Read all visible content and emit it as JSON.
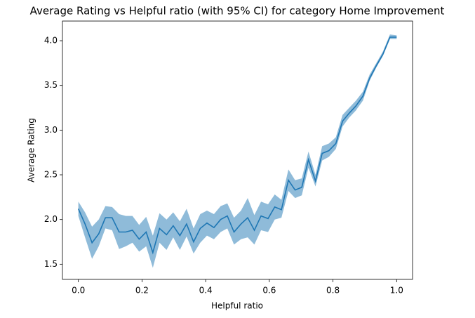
{
  "chart_data": {
    "type": "line",
    "title": "Average Rating vs Helpful ratio (with 95% CI) for category Home Improvement",
    "x_label": "Helpful ratio",
    "y_label": "Average Rating",
    "x": [
      0,
      0.021,
      0.043,
      0.064,
      0.085,
      0.106,
      0.128,
      0.149,
      0.17,
      0.191,
      0.213,
      0.234,
      0.255,
      0.277,
      0.298,
      0.319,
      0.34,
      0.362,
      0.383,
      0.404,
      0.426,
      0.447,
      0.468,
      0.489,
      0.511,
      0.532,
      0.553,
      0.574,
      0.596,
      0.617,
      0.638,
      0.66,
      0.681,
      0.702,
      0.723,
      0.745,
      0.766,
      0.787,
      0.809,
      0.83,
      0.851,
      0.872,
      0.894,
      0.915,
      0.936,
      0.957,
      0.979,
      1.0
    ],
    "series": [
      {
        "color": "#1f77b4",
        "band_color": "#8fbbd9",
        "values": [
          2.12,
          1.95,
          1.74,
          1.84,
          2.02,
          2.02,
          1.86,
          1.86,
          1.88,
          1.78,
          1.86,
          1.63,
          1.9,
          1.83,
          1.93,
          1.82,
          1.95,
          1.75,
          1.9,
          1.96,
          1.91,
          2.0,
          2.04,
          1.86,
          1.95,
          2.02,
          1.88,
          2.04,
          2.01,
          2.14,
          2.11,
          2.44,
          2.33,
          2.36,
          2.67,
          2.43,
          2.74,
          2.77,
          2.85,
          3.1,
          3.19,
          3.27,
          3.38,
          3.58,
          3.72,
          3.85,
          4.04,
          4.04
        ],
        "lower": [
          2.04,
          1.8,
          1.56,
          1.7,
          1.9,
          1.88,
          1.67,
          1.7,
          1.74,
          1.64,
          1.7,
          1.46,
          1.74,
          1.66,
          1.8,
          1.66,
          1.81,
          1.62,
          1.74,
          1.82,
          1.78,
          1.86,
          1.9,
          1.72,
          1.78,
          1.8,
          1.72,
          1.88,
          1.86,
          2.0,
          2.02,
          2.32,
          2.24,
          2.27,
          2.58,
          2.37,
          2.66,
          2.7,
          2.79,
          3.04,
          3.14,
          3.22,
          3.33,
          3.55,
          3.7,
          3.83,
          4.02,
          4.02
        ],
        "upper": [
          2.2,
          2.08,
          1.92,
          2.0,
          2.15,
          2.14,
          2.06,
          2.04,
          2.04,
          1.94,
          2.03,
          1.82,
          2.07,
          2.0,
          2.08,
          1.98,
          2.12,
          1.9,
          2.06,
          2.1,
          2.06,
          2.15,
          2.18,
          2.02,
          2.1,
          2.24,
          2.05,
          2.2,
          2.17,
          2.28,
          2.22,
          2.56,
          2.44,
          2.46,
          2.76,
          2.5,
          2.82,
          2.85,
          2.92,
          3.17,
          3.25,
          3.33,
          3.43,
          3.62,
          3.75,
          3.88,
          4.07,
          4.06
        ]
      }
    ],
    "xlim": [
      -0.05,
      1.05
    ],
    "ylim": [
      1.33,
      4.22
    ],
    "xticks": [
      {
        "value": 0,
        "label": "0.0"
      },
      {
        "value": 0.2,
        "label": "0.2"
      },
      {
        "value": 0.4,
        "label": "0.4"
      },
      {
        "value": 0.6,
        "label": "0.6"
      },
      {
        "value": 0.8,
        "label": "0.8"
      },
      {
        "value": 1,
        "label": "1.0"
      }
    ],
    "yticks": [
      1.5,
      {
        "value": 2,
        "label": "2.0"
      },
      2.5,
      {
        "value": 3,
        "label": "3.0"
      },
      3.5,
      {
        "value": 4,
        "label": "4.0"
      }
    ],
    "grid": false
  }
}
